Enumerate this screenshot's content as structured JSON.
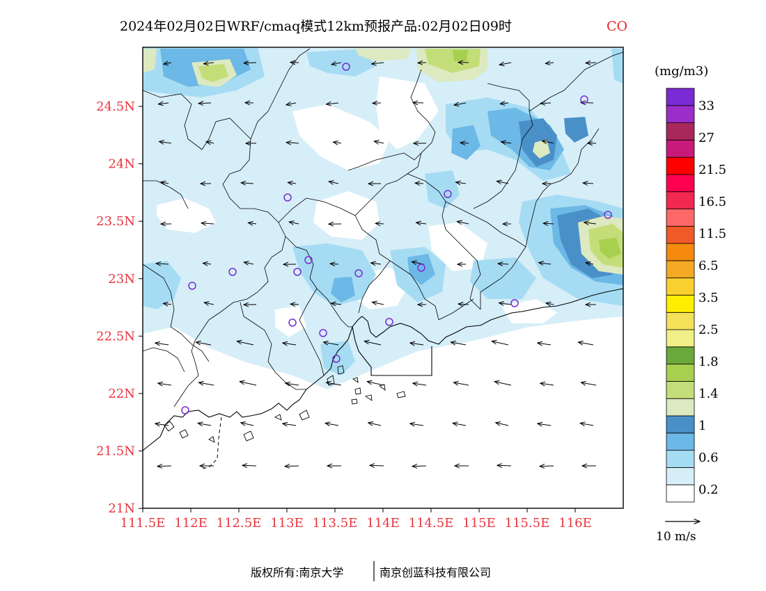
{
  "title": {
    "main": "2024年02月02日WRF/cmaq模式12km预报产品:02月02日09时",
    "species": "CO"
  },
  "axes": {
    "x_ticks": [
      "111.5E",
      "112E",
      "112.5E",
      "113E",
      "113.5E",
      "114E",
      "114.5E",
      "115E",
      "115.5E",
      "116E"
    ],
    "y_ticks": [
      "24.5N",
      "24N",
      "23.5N",
      "23N",
      "22.5N",
      "22N",
      "21.5N",
      "21N"
    ]
  },
  "colorbar": {
    "unit": "(mg/m3)",
    "labels": [
      "33",
      "27",
      "21.5",
      "16.5",
      "11.5",
      "6.5",
      "3.5",
      "2.5",
      "1.8",
      "1.4",
      "1",
      "0.6",
      "0.2"
    ],
    "bands": [
      "#ffffff",
      "#d6eef8",
      "#a6dcf3",
      "#6cb8e6",
      "#4a90c8",
      "#dde9c0",
      "#c3de78",
      "#a8d050",
      "#6ca93c",
      "#f0f088",
      "#f5e05a",
      "#ffee00",
      "#f9d030",
      "#f5a823",
      "#f58a0e",
      "#f05a28",
      "#ff6868",
      "#f22850",
      "#ff0050",
      "#ff0000",
      "#c81a7a",
      "#a8285a",
      "#9b2ec8",
      "#7a2ad2"
    ]
  },
  "wind_key": {
    "label": "10 m/s"
  },
  "stations": {
    "count": 20
  },
  "footer": {
    "left": "版权所有:南京大学",
    "right": "南京创蓝科技有限公司"
  }
}
